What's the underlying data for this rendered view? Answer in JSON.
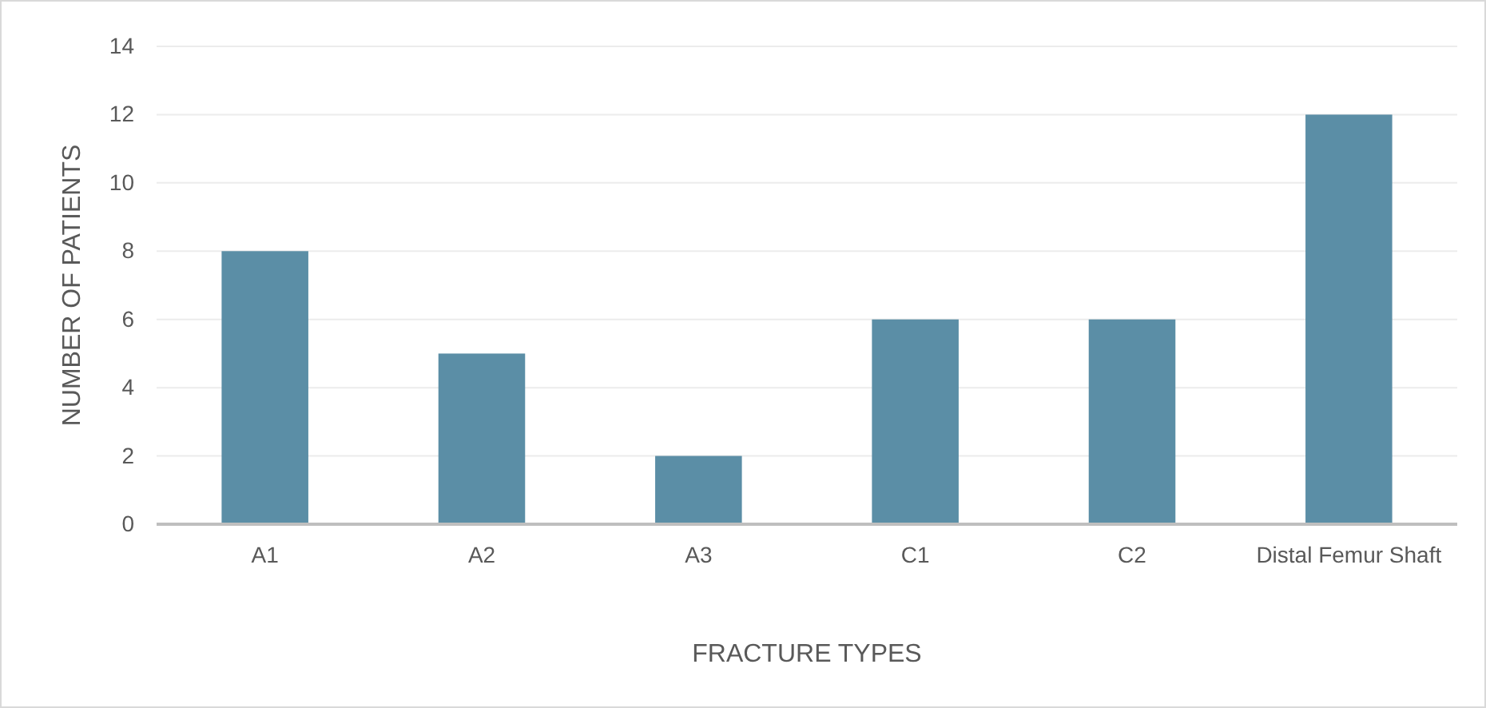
{
  "chart_data": {
    "type": "bar",
    "xlabel": "FRACTURE TYPES",
    "ylabel": "NUMBER OF PATIENTS",
    "categories": [
      "A1",
      "A2",
      "A3",
      "C1",
      "C2",
      "Distal Femur Shaft"
    ],
    "values": [
      8,
      5,
      2,
      6,
      6,
      12
    ],
    "color": "#5b8ea6",
    "ylim": [
      0,
      14
    ],
    "yticks": [
      0,
      2,
      4,
      6,
      8,
      10,
      12,
      14
    ],
    "grid": "y"
  }
}
